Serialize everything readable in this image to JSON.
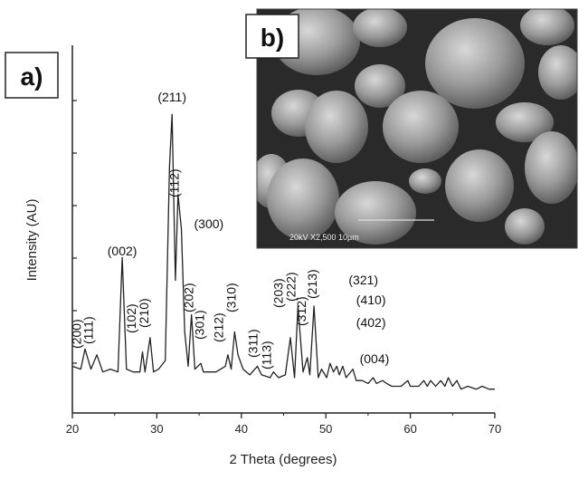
{
  "panel_a_label": "a)",
  "panel_b_label": "b)",
  "sem_image": {
    "scale_bar_text": "20kV   X2,500   10µm"
  },
  "chart_data": {
    "type": "line",
    "xlabel": "2 Theta (degrees)",
    "ylabel": "Intensity (AU)",
    "xlim": [
      20,
      70
    ],
    "xticks": [
      20,
      30,
      40,
      50,
      60,
      70
    ],
    "y_tick_labels_shown": false,
    "grid": false,
    "series": [
      {
        "x": [
          20.0,
          21.0,
          21.5,
          22.2,
          22.9,
          23.6,
          24.5,
          25.4,
          25.9,
          26.4,
          27.2,
          28.0,
          28.3,
          28.6,
          29.2,
          29.6,
          30.2,
          31.0,
          31.5,
          31.8,
          32.2,
          32.5,
          32.9,
          33.3,
          33.7,
          34.1,
          34.5,
          35.2,
          35.5,
          36.1,
          37.0,
          38.1,
          38.4,
          38.8,
          39.2,
          39.6,
          40.2,
          41.0,
          41.9,
          42.4,
          43.4,
          43.8,
          44.4,
          45.2,
          45.8,
          46.3,
          46.7,
          47.3,
          47.8,
          48.1,
          48.6,
          49.1,
          49.5,
          50.1,
          50.5,
          50.9,
          51.3,
          51.6,
          52.0,
          52.4,
          53.2,
          53.6,
          54.3,
          55.0,
          55.6,
          56.0,
          56.7,
          57.2,
          57.8,
          58.9,
          59.7,
          60.0,
          60.4,
          61.0,
          61.6,
          62.0,
          62.4,
          63.0,
          63.6,
          64.1,
          64.5,
          65.0,
          65.5,
          66.0,
          66.8,
          67.8,
          68.5,
          69.3,
          70.0
        ],
        "y": [
          10,
          9,
          16,
          9,
          14,
          8,
          9,
          8,
          48,
          9,
          8,
          8,
          15,
          8,
          20,
          8,
          9,
          12,
          80,
          98,
          40,
          70,
          58,
          22,
          10,
          28,
          9,
          11,
          8,
          8,
          8,
          10,
          14,
          9,
          22,
          14,
          9,
          7,
          10,
          7,
          6,
          8,
          6,
          7,
          20,
          6,
          31,
          8,
          13,
          7,
          31,
          6,
          9,
          6,
          11,
          8,
          10,
          7,
          10,
          6,
          9,
          5,
          5,
          4,
          6,
          4,
          5,
          4,
          3,
          3,
          5,
          3,
          3,
          3,
          5,
          3,
          5,
          3,
          5,
          3,
          6,
          3,
          5,
          2,
          3,
          2,
          3,
          2,
          2
        ]
      }
    ],
    "annotations": [
      "(200)",
      "(111)",
      "(002)",
      "(102)",
      "(210)",
      "(211)",
      "(112)",
      "(300)",
      "(202)",
      "(301)",
      "(212)",
      "(310)",
      "(311)",
      "(113)",
      "(203)",
      "(222)",
      "(312)",
      "(213)",
      "(321)",
      "(410)",
      "(402)",
      "(004)"
    ]
  }
}
